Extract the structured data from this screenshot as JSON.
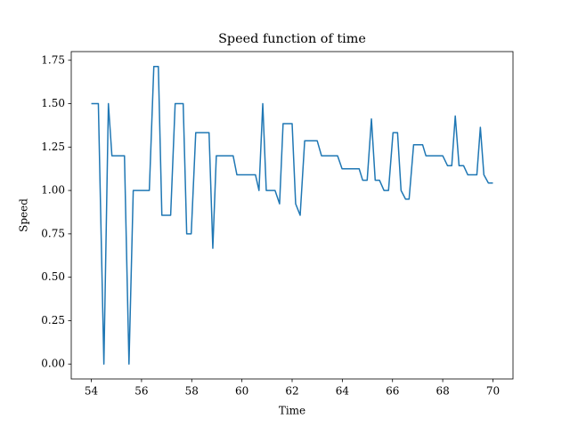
{
  "chart_data": {
    "type": "line",
    "title": "Speed function of time",
    "x_label": "Time",
    "y_label": "Speed",
    "x": [
      54,
      54.28,
      54.5,
      54.68,
      54.82,
      55.32,
      55.5,
      55.67,
      56.31,
      56.49,
      56.67,
      56.81,
      57.16,
      57.34,
      57.66,
      57.8,
      57.98,
      58.16,
      58.69,
      58.84,
      58.98,
      59.65,
      59.8,
      60.54,
      60.68,
      60.83,
      60.97,
      61.32,
      61.5,
      61.64,
      62.0,
      62.14,
      62.32,
      62.5,
      63.0,
      63.17,
      63.81,
      63.99,
      64.67,
      64.81,
      64.99,
      65.16,
      65.31,
      65.48,
      65.66,
      65.84,
      66.02,
      66.2,
      66.34,
      66.52,
      66.66,
      66.84,
      67.2,
      67.33,
      68.0,
      68.19,
      68.36,
      68.5,
      68.65,
      68.83,
      69.0,
      69.36,
      69.5,
      69.64,
      69.82,
      70.0
    ],
    "values": [
      1.5,
      1.5,
      0,
      1.5,
      1.2,
      1.2,
      0,
      1.0,
      1.0,
      1.714,
      1.714,
      0.857,
      0.857,
      1.5,
      1.5,
      0.75,
      0.75,
      1.333,
      1.333,
      0.667,
      1.2,
      1.2,
      1.09,
      1.09,
      1.0,
      1.5,
      1.0,
      1.0,
      0.923,
      1.385,
      1.385,
      0.923,
      0.857,
      1.286,
      1.286,
      1.2,
      1.2,
      1.125,
      1.125,
      1.059,
      1.059,
      1.412,
      1.059,
      1.059,
      1.0,
      1.0,
      1.333,
      1.333,
      1.0,
      0.95,
      0.95,
      1.263,
      1.263,
      1.2,
      1.2,
      1.143,
      1.143,
      1.429,
      1.143,
      1.143,
      1.09,
      1.09,
      1.364,
      1.09,
      1.043,
      1.043
    ],
    "color": "#1f77b4",
    "xlim": [
      53.2,
      70.8
    ],
    "xticks": [
      54,
      56,
      58,
      60,
      62,
      64,
      66,
      68,
      70
    ],
    "ylim": [
      -0.086,
      1.8
    ],
    "yticks": [
      {
        "value": 0,
        "label": "0.00"
      },
      {
        "value": 0.25,
        "label": "0.25"
      },
      {
        "value": 0.5,
        "label": "0.50"
      },
      {
        "value": 0.75,
        "label": "0.75"
      },
      {
        "value": 1,
        "label": "1.00"
      },
      {
        "value": 1.25,
        "label": "1.25"
      },
      {
        "value": 1.5,
        "label": "1.50"
      },
      {
        "value": 1.75,
        "label": "1.75"
      }
    ],
    "grid": false
  }
}
